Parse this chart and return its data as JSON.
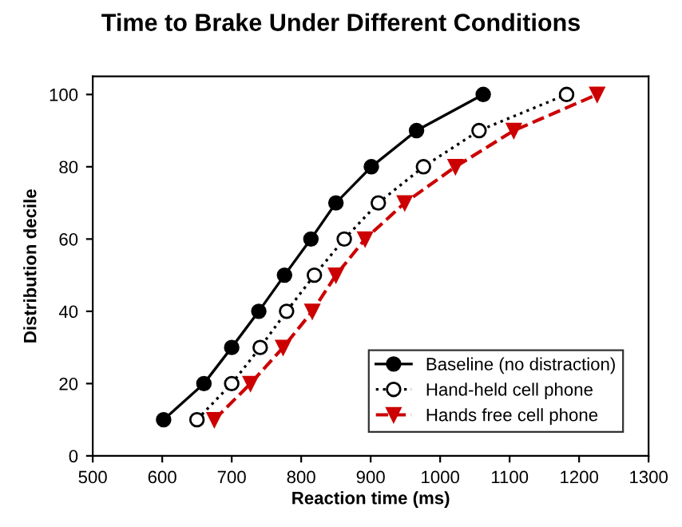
{
  "chart_data": {
    "type": "line",
    "title": "Time to Brake Under Different Conditions",
    "xlabel": "Reaction time (ms)",
    "ylabel": "Distribution decile",
    "xlim": [
      500,
      1300
    ],
    "xticks": [
      500,
      600,
      700,
      800,
      900,
      1000,
      1100,
      1200,
      1300
    ],
    "ylim": [
      0,
      105
    ],
    "yticks": [
      0,
      20,
      40,
      60,
      80,
      100
    ],
    "grid": false,
    "legend": "bottom right",
    "series": [
      {
        "name": "Baseline (no distraction)",
        "color": "#000000",
        "marker": "circle",
        "line_style": "solid",
        "x": [
          602,
          660,
          700,
          739,
          776,
          814,
          850,
          901,
          966,
          1062
        ],
        "values": [
          10,
          20,
          30,
          40,
          50,
          60,
          70,
          80,
          90,
          100
        ]
      },
      {
        "name": "Hand-held cell phone",
        "color": "#000000",
        "marker": "circle",
        "line_style": "dotted",
        "x": [
          650,
          700,
          741,
          779,
          819,
          862,
          911,
          976,
          1056,
          1182
        ],
        "values": [
          10,
          20,
          30,
          40,
          50,
          60,
          70,
          80,
          90,
          100
        ]
      },
      {
        "name": "Hands free cell phone",
        "color": "#cc0000",
        "marker": "triangle",
        "line_style": "dashed",
        "x": [
          675,
          727,
          774,
          816,
          850,
          892,
          949,
          1022,
          1106,
          1226
        ],
        "values": [
          10,
          20,
          30,
          40,
          50,
          60,
          70,
          80,
          90,
          100
        ]
      }
    ]
  }
}
